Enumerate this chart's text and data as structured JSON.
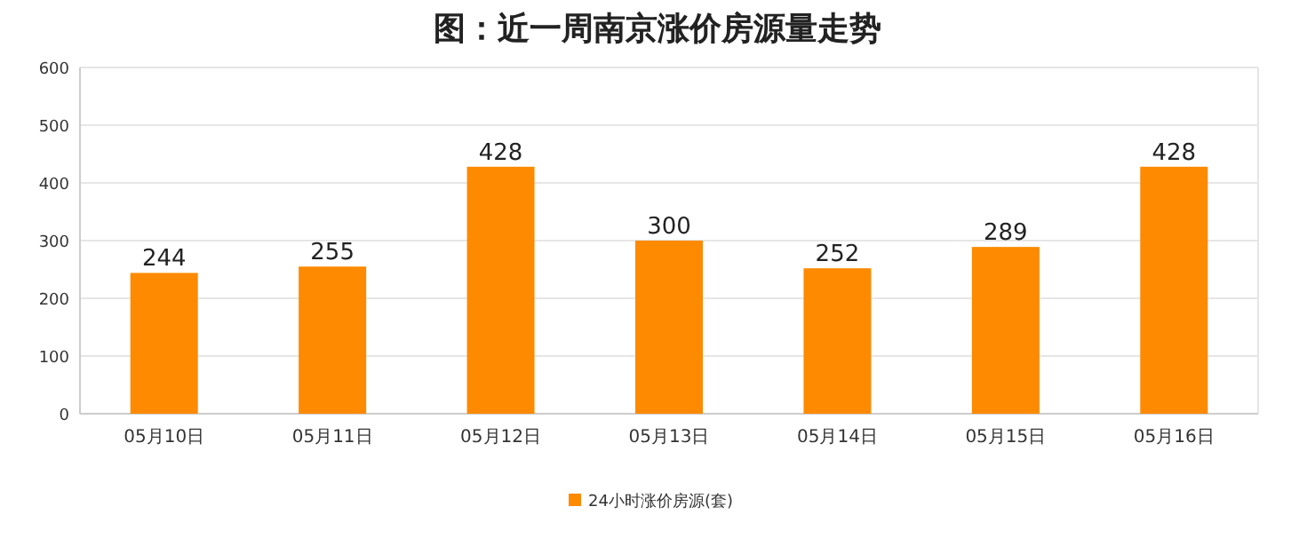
{
  "chart_data": {
    "type": "bar",
    "title": "图：近一周南京涨价房源量走势",
    "categories": [
      "05月10日",
      "05月11日",
      "05月12日",
      "05月13日",
      "05月14日",
      "05月15日",
      "05月16日"
    ],
    "series": [
      {
        "name": "24小时涨价房源(套)",
        "color": "#fd8a00",
        "values": [
          244,
          255,
          428,
          300,
          252,
          289,
          428
        ]
      }
    ],
    "ylim": [
      0,
      600
    ],
    "yticks": [
      0,
      100,
      200,
      300,
      400,
      500,
      600
    ],
    "grid": "y",
    "legend": "bottom",
    "data_labels": true
  }
}
